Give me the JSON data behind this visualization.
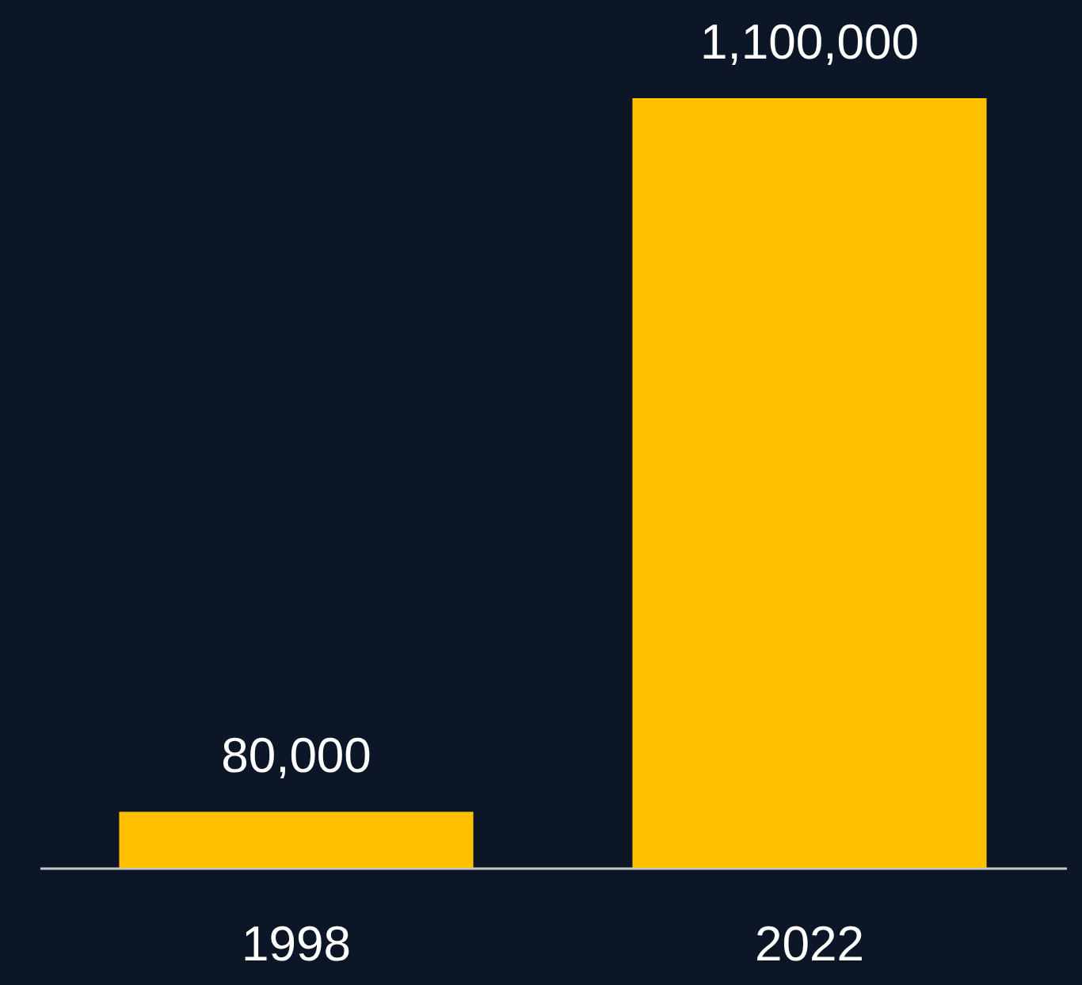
{
  "chart_data": {
    "type": "bar",
    "categories": [
      "1998",
      "2022"
    ],
    "values": [
      80000,
      1100000
    ],
    "value_labels": [
      "80,000",
      "1,100,000"
    ],
    "color": "#ffc000"
  }
}
